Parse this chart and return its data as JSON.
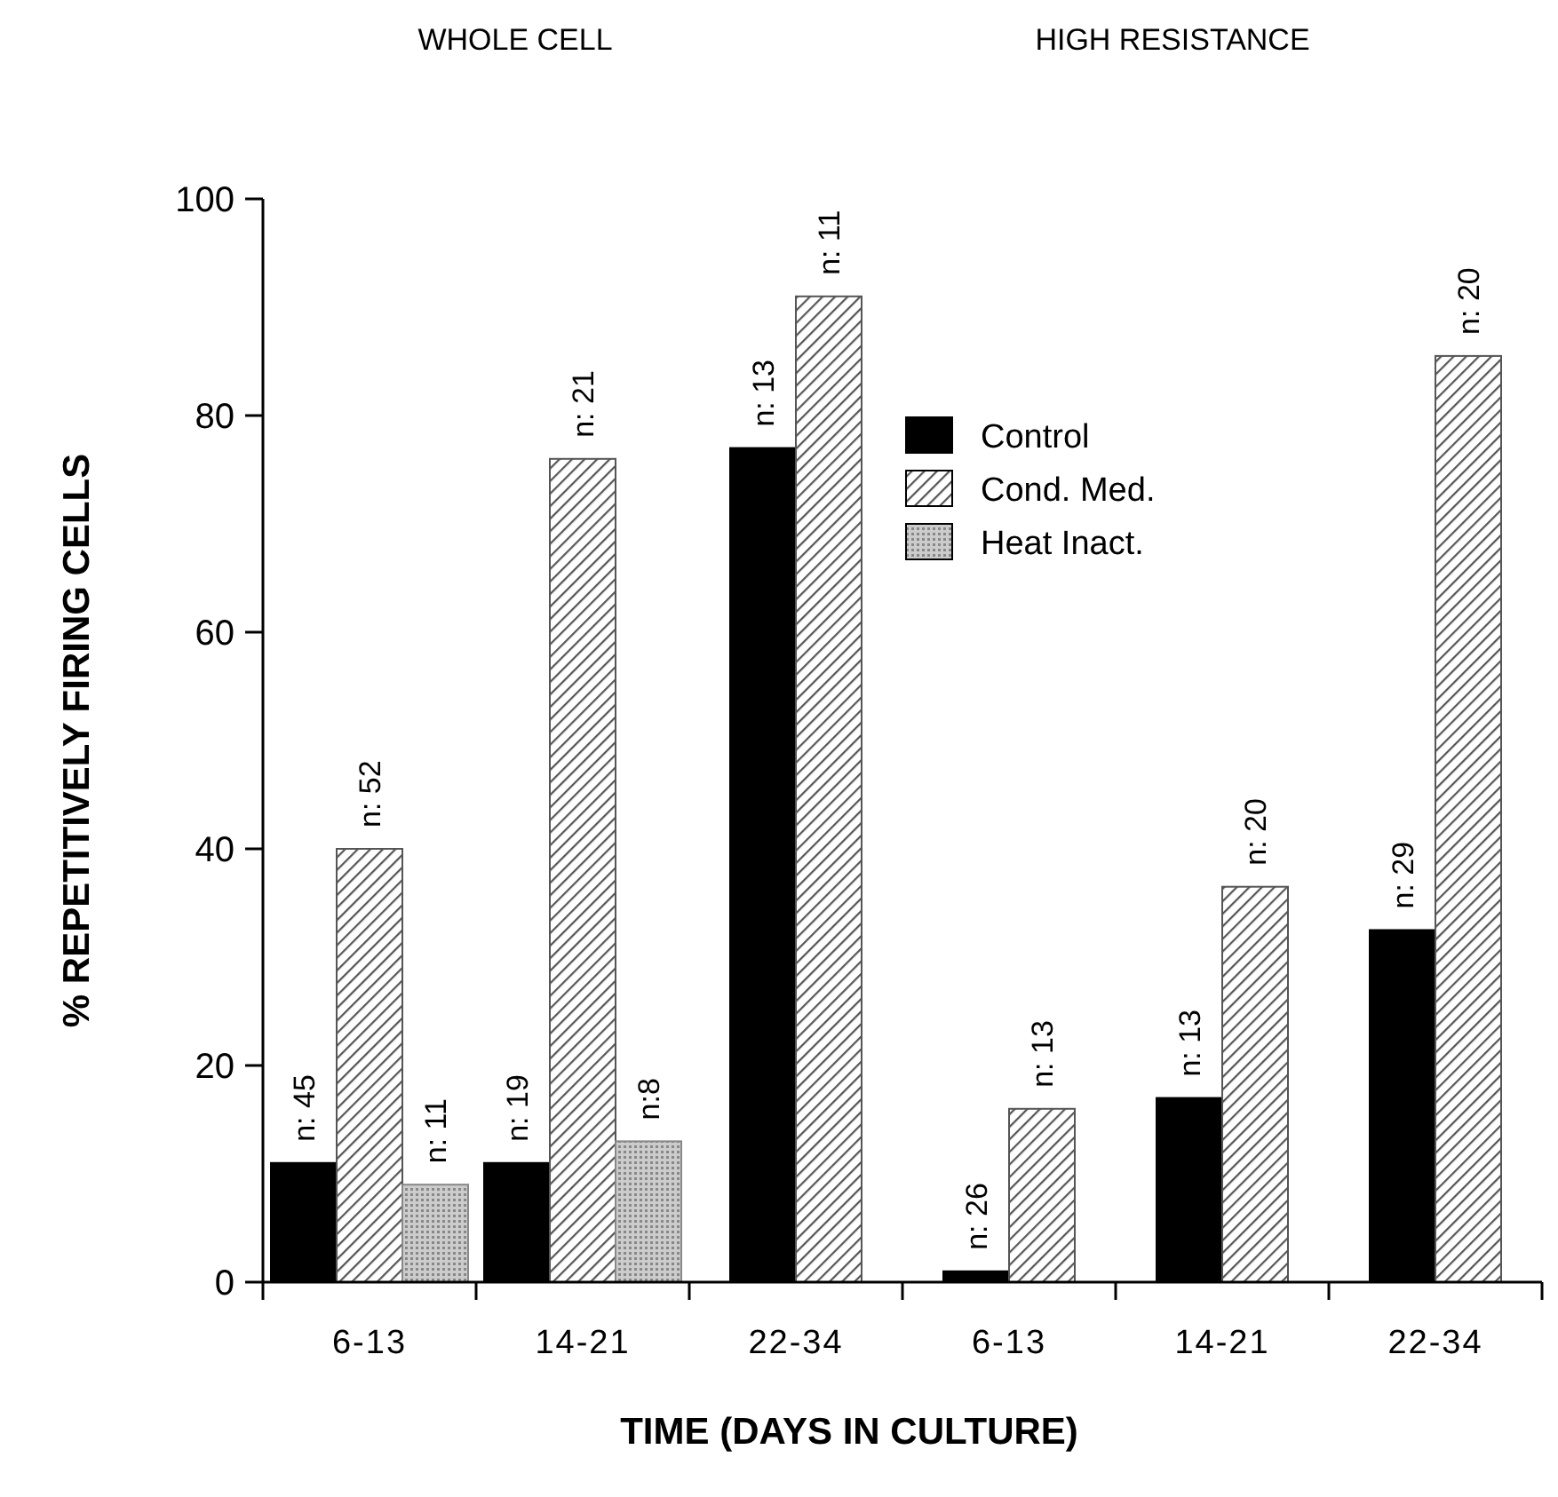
{
  "chart_data": {
    "type": "bar",
    "xlabel": "TIME (DAYS IN CULTURE)",
    "ylabel": "% REPETITIVELY FIRING CELLS",
    "annotations": [
      "WHOLE CELL",
      "HIGH RESISTANCE",
      "n: 45",
      "n: 52",
      "n: 11",
      "n: 19",
      "n: 21",
      "n:8",
      "n: 13",
      "n: 11",
      "n: 26",
      "n: 13",
      "n: 13",
      "n: 20",
      "n: 29",
      "n: 20"
    ],
    "categories": [
      "6-13",
      "14-21",
      "22-34",
      "6-13",
      "14-21",
      "22-34"
    ],
    "series": [
      {
        "name": "Control",
        "color": "#000000",
        "values": [
          11,
          11,
          77,
          1,
          17,
          32.5
        ]
      },
      {
        "name": "Cond. Med.",
        "color": "#555555",
        "values": [
          40,
          76,
          91,
          16,
          36.5,
          85.5
        ]
      },
      {
        "name": "Heat Inact.",
        "color": "#888888",
        "values": [
          9,
          13,
          null,
          null,
          null,
          null
        ]
      }
    ],
    "ylim": [
      0,
      100
    ],
    "yticks": [
      0,
      20,
      40,
      60,
      80,
      100
    ],
    "legend": "top right"
  }
}
